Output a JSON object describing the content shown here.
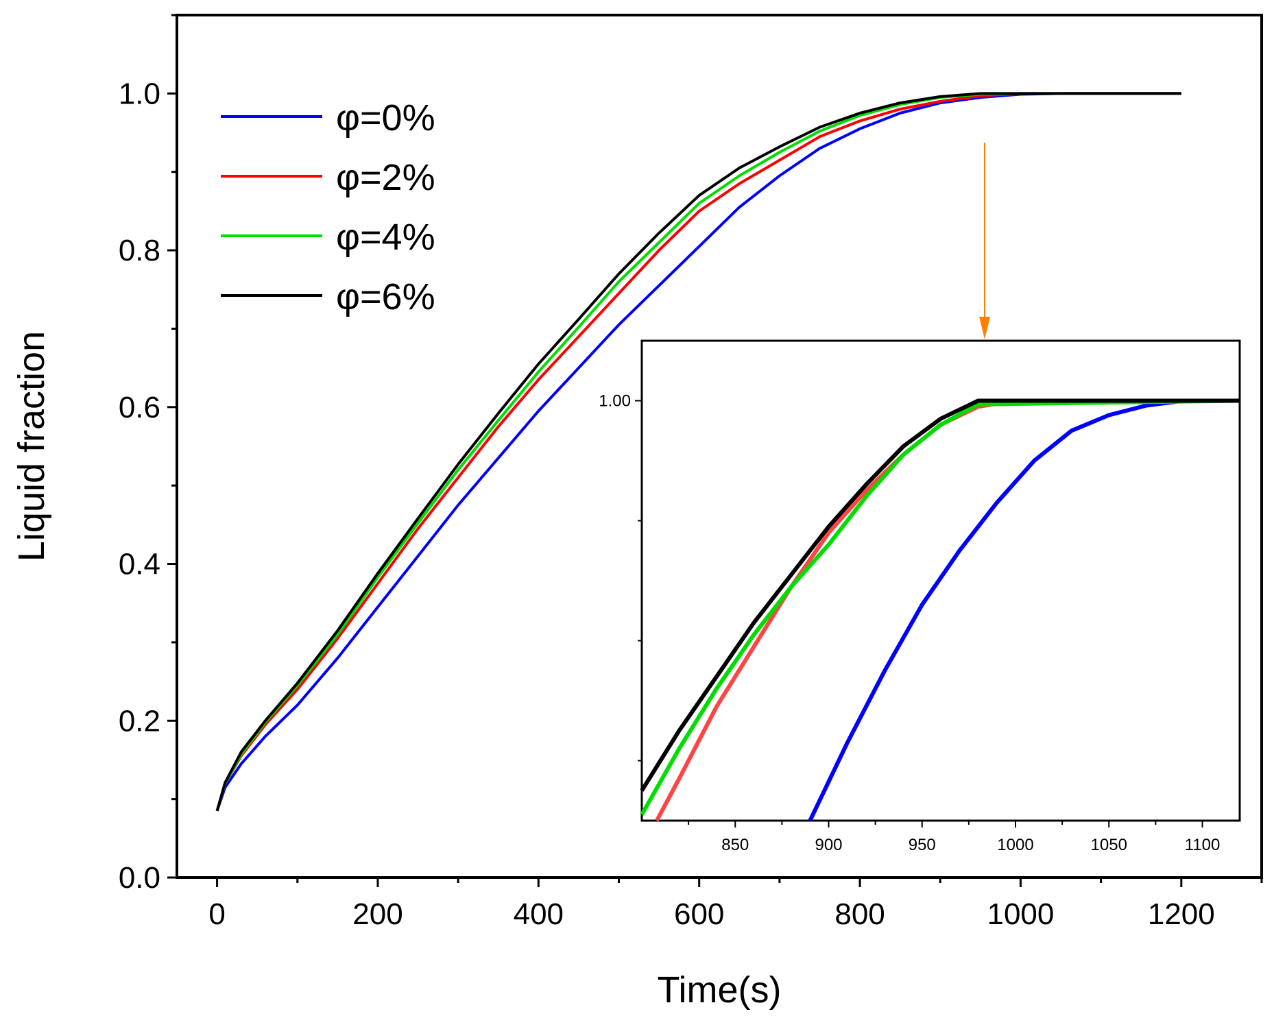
{
  "chart_data": {
    "type": "line",
    "xlabel": "Time(s)",
    "ylabel": "Liquid fraction",
    "xlim": [
      -50,
      1300
    ],
    "ylim": [
      0,
      1.1
    ],
    "xticks": [
      0,
      200,
      400,
      600,
      800,
      1000,
      1200
    ],
    "xtick_labels": [
      "0",
      "200",
      "400",
      "600",
      "800",
      "1000",
      "1200"
    ],
    "yticks": [
      0.0,
      0.2,
      0.4,
      0.6,
      0.8,
      1.0
    ],
    "ytick_labels": [
      "0.0",
      "0.2",
      "0.4",
      "0.6",
      "0.8",
      "1.0"
    ],
    "legend_position": "top-left",
    "series": [
      {
        "name": "φ=0%",
        "color": "#0000ff",
        "x": [
          0,
          10,
          30,
          60,
          100,
          150,
          200,
          250,
          300,
          350,
          400,
          450,
          500,
          550,
          600,
          650,
          700,
          750,
          800,
          850,
          900,
          950,
          1000,
          1050,
          1100,
          1150,
          1200
        ],
        "y": [
          0.085,
          0.115,
          0.145,
          0.18,
          0.22,
          0.28,
          0.345,
          0.41,
          0.475,
          0.535,
          0.595,
          0.65,
          0.705,
          0.755,
          0.805,
          0.855,
          0.895,
          0.93,
          0.955,
          0.975,
          0.988,
          0.995,
          0.999,
          1.0,
          1.0,
          1.0,
          1.0
        ]
      },
      {
        "name": "φ=2%",
        "color": "#ff0000",
        "x": [
          0,
          10,
          30,
          60,
          100,
          150,
          200,
          250,
          300,
          350,
          400,
          450,
          500,
          550,
          600,
          650,
          700,
          750,
          800,
          850,
          900,
          950,
          1000,
          1050,
          1100,
          1150,
          1200
        ],
        "y": [
          0.085,
          0.12,
          0.155,
          0.195,
          0.24,
          0.305,
          0.375,
          0.445,
          0.51,
          0.575,
          0.635,
          0.69,
          0.745,
          0.8,
          0.85,
          0.885,
          0.915,
          0.945,
          0.965,
          0.98,
          0.99,
          0.997,
          1.0,
          1.0,
          1.0,
          1.0,
          1.0
        ]
      },
      {
        "name": "φ=4%",
        "color": "#00dd00",
        "x": [
          0,
          10,
          30,
          60,
          100,
          150,
          200,
          250,
          300,
          350,
          400,
          450,
          500,
          550,
          600,
          650,
          700,
          750,
          800,
          850,
          900,
          950,
          1000,
          1050,
          1100,
          1150,
          1200
        ],
        "y": [
          0.085,
          0.12,
          0.157,
          0.198,
          0.245,
          0.31,
          0.383,
          0.452,
          0.52,
          0.583,
          0.645,
          0.702,
          0.76,
          0.81,
          0.86,
          0.895,
          0.925,
          0.952,
          0.972,
          0.986,
          0.995,
          0.999,
          1.0,
          1.0,
          1.0,
          1.0,
          1.0
        ]
      },
      {
        "name": "φ=6%",
        "color": "#000000",
        "x": [
          0,
          10,
          30,
          60,
          100,
          150,
          200,
          250,
          300,
          350,
          400,
          450,
          500,
          550,
          600,
          650,
          700,
          750,
          800,
          850,
          900,
          950,
          1000,
          1050,
          1100,
          1150,
          1200
        ],
        "y": [
          0.085,
          0.121,
          0.16,
          0.2,
          0.248,
          0.315,
          0.388,
          0.458,
          0.527,
          0.592,
          0.655,
          0.712,
          0.77,
          0.822,
          0.87,
          0.905,
          0.932,
          0.957,
          0.975,
          0.988,
          0.996,
          1.0,
          1.0,
          1.0,
          1.0,
          1.0,
          1.0
        ]
      }
    ],
    "annotation": "arrow pointing from main plot near t≈960 s, y≈0.98 down to the zoomed inset",
    "inset": {
      "type": "line",
      "xlim": [
        800,
        1120
      ],
      "ylim": [
        0.965,
        1.005
      ],
      "xticks": [
        850,
        900,
        950,
        1000,
        1050,
        1100
      ],
      "xtick_labels": [
        "850",
        "900",
        "950",
        "1000",
        "1050",
        "1100"
      ],
      "yticks": [
        1.0
      ],
      "ytick_labels": [
        "1.00"
      ],
      "series": [
        {
          "name": "φ=0%",
          "color": "#0000ff",
          "x": [
            890,
            910,
            930,
            950,
            970,
            990,
            1010,
            1030,
            1050,
            1070,
            1090,
            1120
          ],
          "y": [
            0.965,
            0.9715,
            0.9775,
            0.983,
            0.9875,
            0.9915,
            0.995,
            0.9975,
            0.9988,
            0.9996,
            1.0,
            1.0
          ]
        },
        {
          "name": "φ=2%",
          "color": "#ff4444",
          "x": [
            808,
            820,
            840,
            860,
            880,
            900,
            920,
            940,
            960,
            980,
            1000,
            1120
          ],
          "y": [
            0.965,
            0.9685,
            0.9745,
            0.9795,
            0.9845,
            0.989,
            0.9925,
            0.9955,
            0.998,
            0.9995,
            1.0,
            1.0
          ]
        },
        {
          "name": "φ=4%",
          "color": "#00dd00",
          "x": [
            800,
            820,
            840,
            860,
            880,
            900,
            920,
            940,
            960,
            980,
            1120
          ],
          "y": [
            0.9655,
            0.971,
            0.976,
            0.9805,
            0.9845,
            0.988,
            0.992,
            0.9955,
            0.998,
            0.9997,
            1.0
          ]
        },
        {
          "name": "φ=6%",
          "color": "#000000",
          "x": [
            800,
            820,
            840,
            860,
            880,
            900,
            920,
            940,
            960,
            980,
            1120
          ],
          "y": [
            0.9675,
            0.9725,
            0.977,
            0.9815,
            0.9855,
            0.9895,
            0.993,
            0.9962,
            0.9985,
            1.0,
            1.0
          ]
        }
      ]
    }
  },
  "arrow_color": "#ff7f00"
}
